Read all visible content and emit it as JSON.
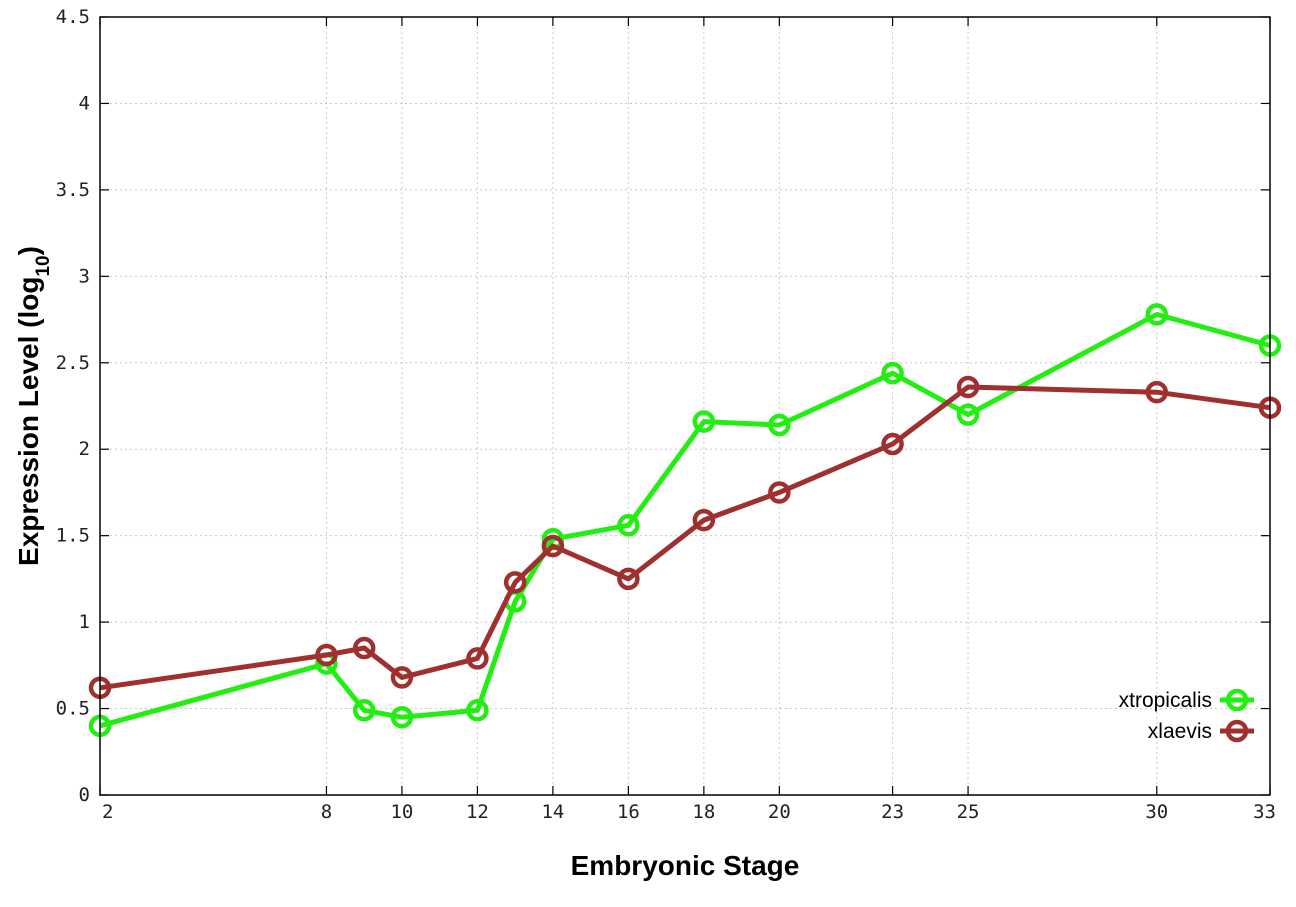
{
  "chart_data": {
    "type": "line",
    "xlabel": "Embryonic Stage",
    "ylabel_main": "Expression Level (log",
    "ylabel_sub": "10",
    "ylabel_close": ")",
    "ylim": [
      0,
      4.5
    ],
    "yticks": [
      0,
      0.5,
      1,
      1.5,
      2,
      2.5,
      3,
      3.5,
      4,
      4.5
    ],
    "ytick_labels": [
      "0",
      "0.5",
      "1",
      "1.5",
      "2",
      "2.5",
      "3",
      "3.5",
      "4",
      "4.5"
    ],
    "xticks": [
      2,
      8,
      10,
      12,
      14,
      16,
      18,
      20,
      23,
      25,
      30,
      33
    ],
    "xtick_labels": [
      "2",
      "8",
      "10",
      "12",
      "14",
      "16",
      "18",
      "20",
      "23",
      "25",
      "30",
      "33"
    ],
    "xlim": [
      2,
      33
    ],
    "grid": true,
    "legend_position": "bottom-right",
    "series": [
      {
        "name": "xtropicalis",
        "color": "#22ee11",
        "x": [
          2,
          8,
          9,
          10,
          12,
          13,
          14,
          16,
          18,
          20,
          23,
          25,
          30,
          33
        ],
        "y": [
          0.4,
          0.76,
          0.49,
          0.45,
          0.49,
          1.12,
          1.48,
          1.56,
          2.16,
          2.14,
          2.44,
          2.2,
          2.78,
          2.6
        ]
      },
      {
        "name": "xlaevis",
        "color": "#a0302f",
        "x": [
          2,
          8,
          9,
          10,
          12,
          13,
          14,
          16,
          18,
          20,
          23,
          25,
          30,
          33
        ],
        "y": [
          0.62,
          0.81,
          0.85,
          0.68,
          0.79,
          1.23,
          1.44,
          1.25,
          1.59,
          1.75,
          2.03,
          2.36,
          2.33,
          2.24
        ]
      }
    ]
  }
}
